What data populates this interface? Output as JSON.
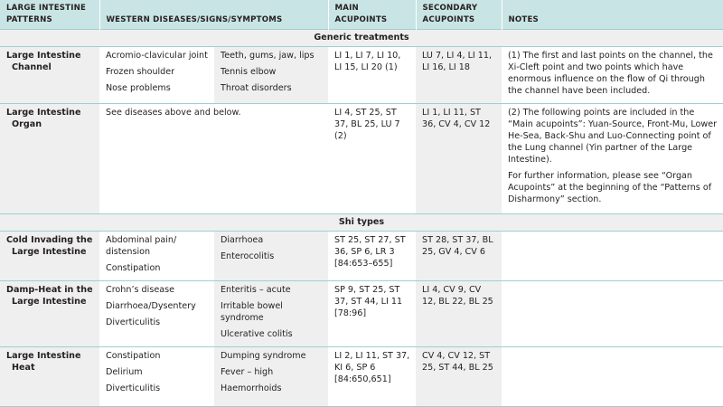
{
  "headers": [
    "LARGE INTESTINE PATTERNS",
    "WESTERN DISEASES/SIGNS/SYMPTOMS",
    "MAIN ACUPOINTS",
    "SECONDARY ACUPOINTS",
    "NOTES"
  ],
  "sections": [
    {
      "title": "Generic treatments",
      "rows": [
        {
          "pattern": [
            "Large Intestine",
            "Channel"
          ],
          "diseases_a": [
            "Acromio-clavicular joint",
            "Frozen shoulder",
            "Nose problems"
          ],
          "diseases_b": [
            "Teeth, gums, jaw, lips",
            "Tennis elbow",
            "Throat disorders"
          ],
          "main": "LI 1, LI 7, LI 10, LI 15, LI 20 (1)",
          "secondary": "LU 7, LI 4, LI 11, LI 16, LI 18",
          "notes": [
            "(1) The first and last points on the channel, the Xi-Cleft point and two points which have enormous influence on the flow of Qi through the channel have been included."
          ]
        },
        {
          "pattern": [
            "Large Intestine",
            "Organ"
          ],
          "diseases_span": "See diseases above and below.",
          "main": "LI 4, ST 25, ST 37, BL 25, LU 7 (2)",
          "secondary": "LI 1, LI 11, ST 36, CV 4, CV 12",
          "notes": [
            "(2) The following points are included in the “Main acupoints”: Yuan-Source, Front-Mu, Lower He-Sea, Back-Shu and Luo-Connecting point of the Lung channel (Yin partner of the Large Intestine).",
            "For further information, please see “Organ Acupoints” at the beginning of the “Patterns of Disharmony” section."
          ]
        }
      ]
    },
    {
      "title": "Shi types",
      "rows": [
        {
          "pattern": [
            "Cold Invading the",
            "Large Intestine"
          ],
          "diseases_a": [
            "Abdominal pain/ distension",
            "Constipation"
          ],
          "diseases_b": [
            "Diarrhoea",
            "Enterocolitis"
          ],
          "main": "ST 25, ST 27, ST 36, SP 6, LR 3 [84:653–655]",
          "secondary": "ST 28, ST 37, BL 25, GV 4, CV 6",
          "notes": []
        },
        {
          "pattern": [
            "Damp-Heat in the",
            "Large Intestine"
          ],
          "diseases_a": [
            "Crohn’s disease",
            "Diarrhoea/Dysentery",
            "Diverticulitis"
          ],
          "diseases_b": [
            "Enteritis – acute",
            "Irritable bowel syndrome",
            "Ulcerative colitis"
          ],
          "main": "SP 9, ST 25, ST 37, ST 44, LI 11 [78:96]",
          "secondary": "LI 4, CV 9, CV 12, BL 22, BL 25",
          "notes": []
        },
        {
          "pattern": [
            "Large Intestine",
            "Heat"
          ],
          "diseases_a": [
            "Constipation",
            "Delirium",
            "Diverticulitis"
          ],
          "diseases_b": [
            "Dumping syndrome",
            "Fever – high",
            "Haemorrhoids"
          ],
          "main": "LI 2, LI 11, ST 37, KI 6, SP 6 [84:650,651]",
          "secondary": "CV 4, CV 12, ST 25, ST 44, BL 25",
          "notes": []
        }
      ]
    }
  ]
}
